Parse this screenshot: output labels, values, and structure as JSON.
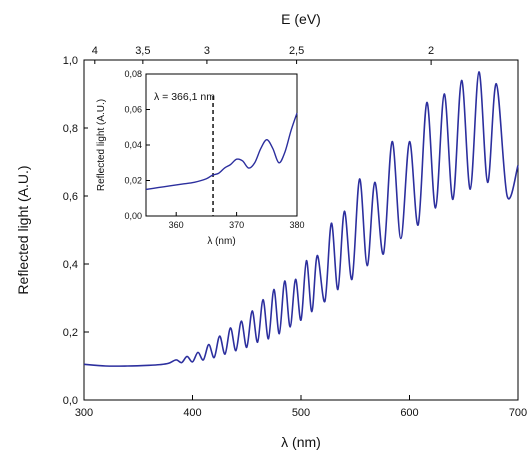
{
  "chart_data": [
    {
      "type": "line",
      "xlabel": "λ (nm)",
      "ylabel": "Reflected light (A.U.)",
      "top_xlabel": "E (eV)",
      "xlim": [
        300,
        700
      ],
      "ylim": [
        0,
        1.0
      ],
      "x_ticks": [
        300,
        400,
        500,
        600,
        700
      ],
      "y_ticks": [
        {
          "value": 0.0,
          "label": "0,0"
        },
        {
          "value": 0.2,
          "label": "0,2"
        },
        {
          "value": 0.4,
          "label": "0,4"
        },
        {
          "value": 0.6,
          "label": "0,6"
        },
        {
          "value": 0.8,
          "label": "0,8"
        },
        {
          "value": 1.0,
          "label": "1,0"
        }
      ],
      "top_ticks": [
        {
          "energy": 4,
          "label": "4"
        },
        {
          "energy": 3.5,
          "label": "3,5"
        },
        {
          "energy": 3,
          "label": "3"
        },
        {
          "energy": 2.5,
          "label": "2,5"
        },
        {
          "energy": 2,
          "label": "2"
        }
      ],
      "line_color": "#2c2f9e",
      "grid": false,
      "series": [
        {
          "x": [
            300,
            320,
            340,
            360,
            370,
            378,
            385,
            390,
            395,
            400,
            405,
            410,
            415,
            420,
            425,
            430,
            435,
            440,
            445,
            450,
            455,
            460,
            465,
            470,
            475,
            480,
            485,
            490,
            495,
            500,
            505,
            510,
            515,
            522,
            528,
            534,
            540,
            547,
            554,
            561,
            568,
            576,
            584,
            592,
            600,
            608,
            616,
            624,
            632,
            640,
            648,
            656,
            664,
            672,
            680,
            690,
            700
          ],
          "y": [
            0.105,
            0.1,
            0.1,
            0.102,
            0.104,
            0.108,
            0.118,
            0.11,
            0.128,
            0.112,
            0.14,
            0.118,
            0.163,
            0.125,
            0.188,
            0.135,
            0.212,
            0.145,
            0.232,
            0.155,
            0.262,
            0.17,
            0.295,
            0.18,
            0.325,
            0.195,
            0.35,
            0.215,
            0.355,
            0.235,
            0.41,
            0.26,
            0.425,
            0.29,
            0.52,
            0.325,
            0.555,
            0.355,
            0.65,
            0.395,
            0.64,
            0.43,
            0.76,
            0.475,
            0.76,
            0.515,
            0.875,
            0.565,
            0.9,
            0.59,
            0.94,
            0.62,
            0.965,
            0.64,
            0.93,
            0.6,
            0.69
          ]
        }
      ]
    },
    {
      "type": "line",
      "xlabel": "λ (nm)",
      "ylabel": "Reflected light (A.U.)",
      "xlim": [
        355,
        380
      ],
      "ylim": [
        0,
        0.08
      ],
      "x_ticks": [
        360,
        370,
        380
      ],
      "y_ticks": [
        {
          "value": 0.0,
          "label": "0,00"
        },
        {
          "value": 0.02,
          "label": "0,02"
        },
        {
          "value": 0.04,
          "label": "0,04"
        },
        {
          "value": 0.06,
          "label": "0,06"
        },
        {
          "value": 0.08,
          "label": "0,08"
        }
      ],
      "annotation": {
        "text": "λ = 366,1 nm",
        "x": 366.1
      },
      "line_color": "#2c2f9e",
      "series": [
        {
          "x": [
            355,
            357,
            359,
            361,
            363,
            365,
            366,
            367,
            368,
            369,
            370,
            371,
            372,
            373,
            374,
            375,
            376,
            377,
            378,
            379,
            380
          ],
          "y": [
            0.015,
            0.016,
            0.017,
            0.018,
            0.019,
            0.021,
            0.023,
            0.024,
            0.027,
            0.029,
            0.032,
            0.031,
            0.027,
            0.03,
            0.038,
            0.043,
            0.038,
            0.03,
            0.036,
            0.048,
            0.058
          ]
        }
      ]
    }
  ]
}
